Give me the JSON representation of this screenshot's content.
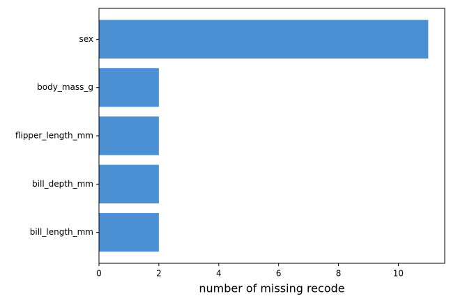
{
  "chart_data": {
    "type": "barh",
    "categories": [
      "sex",
      "body_mass_g",
      "flipper_length_mm",
      "bill_depth_mm",
      "bill_length_mm"
    ],
    "values": [
      11,
      2,
      2,
      2,
      2
    ],
    "color": "#4a90d2",
    "xlabel": "number of missing recode",
    "xlim": [
      0,
      11.55
    ],
    "xticks": [
      0,
      2,
      4,
      6,
      8,
      10
    ]
  }
}
